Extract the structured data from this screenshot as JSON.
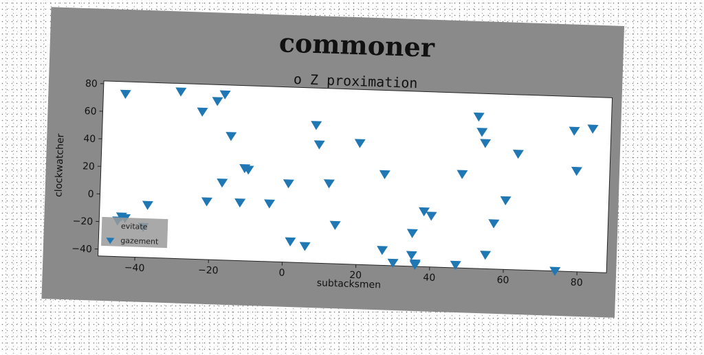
{
  "chart_data": {
    "type": "scatter",
    "title": "commoner",
    "subtitle": "o Z proximation",
    "xlabel": "subtacksmen",
    "ylabel": "clockwatcher",
    "xlim": [
      -50,
      88
    ],
    "ylim": [
      -45,
      82
    ],
    "xticks": [
      -40,
      -20,
      0,
      20,
      40,
      60,
      80
    ],
    "yticks": [
      -40,
      -20,
      0,
      20,
      40,
      60,
      80
    ],
    "grid": false,
    "legend_position": "lower-left",
    "series": [
      {
        "name": "evitate",
        "marker": "none",
        "color": "#1f77b4",
        "x": [],
        "y": []
      },
      {
        "name": "gazement",
        "marker": "triangle-down",
        "color": "#1f77b4",
        "x": [
          -44,
          -29,
          -23,
          -19,
          -17,
          -15,
          -11,
          -17,
          -10,
          -21,
          -12,
          -4,
          -37,
          -44,
          -45,
          -43,
          -38,
          1,
          8,
          9,
          12,
          20,
          27,
          2,
          6,
          14,
          27,
          30,
          35,
          35,
          36,
          36,
          38,
          40,
          47,
          48,
          52,
          53,
          54,
          57,
          55,
          60,
          63,
          74,
          78,
          79,
          83
        ],
        "y": [
          73,
          76,
          62,
          70,
          75,
          45,
          22,
          11,
          21,
          -3,
          -3,
          -3,
          -7,
          -16,
          -19,
          -17,
          -23,
          12,
          55,
          41,
          13,
          43,
          21,
          -30,
          -33,
          -17,
          -34,
          -43,
          -21,
          -37,
          -43,
          -44,
          -5,
          -8,
          -43,
          23,
          65,
          54,
          46,
          -12,
          -35,
          5,
          39,
          -45,
          57,
          28,
          59
        ]
      }
    ]
  }
}
